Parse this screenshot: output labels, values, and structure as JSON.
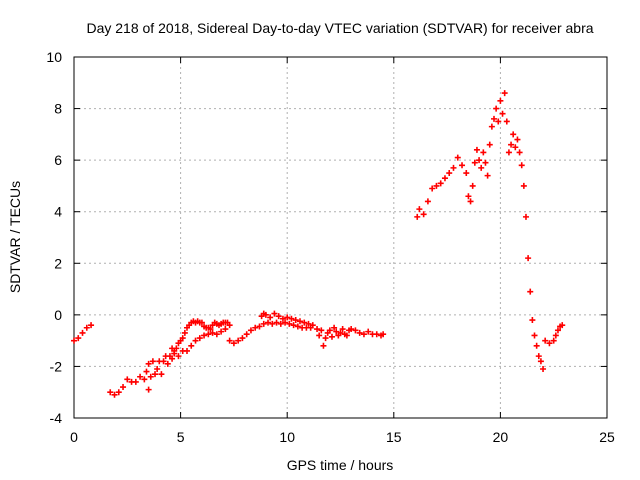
{
  "chart_data": {
    "type": "scatter",
    "title": "Day 218 of 2018, Sidereal Day-to-day VTEC variation (SDTVAR) for receiver abra",
    "xlabel": "GPS time / hours",
    "ylabel": "SDTVAR / TECUs",
    "xlim": [
      0,
      25
    ],
    "ylim": [
      -4,
      10
    ],
    "xticks": [
      0,
      5,
      10,
      15,
      20,
      25
    ],
    "yticks": [
      -4,
      -2,
      0,
      2,
      4,
      6,
      8,
      10
    ],
    "grid": true,
    "marker": "+",
    "series": [
      {
        "name": "SDTVAR",
        "color": "#ff0000",
        "points": [
          [
            0.0,
            -1.0
          ],
          [
            0.2,
            -0.9
          ],
          [
            0.4,
            -0.7
          ],
          [
            0.6,
            -0.5
          ],
          [
            0.8,
            -0.4
          ],
          [
            1.7,
            -3.0
          ],
          [
            1.9,
            -3.1
          ],
          [
            2.1,
            -3.0
          ],
          [
            2.3,
            -2.8
          ],
          [
            2.5,
            -2.5
          ],
          [
            2.7,
            -2.6
          ],
          [
            2.9,
            -2.6
          ],
          [
            3.1,
            -2.4
          ],
          [
            3.3,
            -2.5
          ],
          [
            3.4,
            -2.2
          ],
          [
            3.5,
            -1.9
          ],
          [
            3.5,
            -2.9
          ],
          [
            3.6,
            -2.4
          ],
          [
            3.7,
            -1.8
          ],
          [
            3.8,
            -2.3
          ],
          [
            3.9,
            -2.1
          ],
          [
            4.0,
            -1.8
          ],
          [
            4.1,
            -2.3
          ],
          [
            4.2,
            -1.8
          ],
          [
            4.3,
            -1.6
          ],
          [
            4.4,
            -1.9
          ],
          [
            4.5,
            -1.6
          ],
          [
            4.6,
            -1.7
          ],
          [
            4.7,
            -1.4
          ],
          [
            4.8,
            -1.3
          ],
          [
            4.9,
            -1.1
          ],
          [
            5.0,
            -1.0
          ],
          [
            5.1,
            -0.9
          ],
          [
            5.2,
            -0.7
          ],
          [
            5.3,
            -0.5
          ],
          [
            5.4,
            -0.4
          ],
          [
            5.5,
            -0.3
          ],
          [
            5.6,
            -0.25
          ],
          [
            5.7,
            -0.3
          ],
          [
            5.8,
            -0.25
          ],
          [
            5.9,
            -0.3
          ],
          [
            6.0,
            -0.3
          ],
          [
            6.1,
            -0.45
          ],
          [
            6.2,
            -0.5
          ],
          [
            6.3,
            -0.5
          ],
          [
            6.4,
            -0.55
          ],
          [
            6.5,
            -0.4
          ],
          [
            6.6,
            -0.3
          ],
          [
            6.7,
            -0.35
          ],
          [
            6.8,
            -0.4
          ],
          [
            6.9,
            -0.35
          ],
          [
            7.0,
            -0.3
          ],
          [
            7.1,
            -0.3
          ],
          [
            7.2,
            -0.3
          ],
          [
            7.3,
            -0.4
          ],
          [
            4.6,
            -1.3
          ],
          [
            4.7,
            -1.5
          ],
          [
            4.9,
            -1.6
          ],
          [
            5.1,
            -1.4
          ],
          [
            5.3,
            -1.4
          ],
          [
            5.5,
            -1.2
          ],
          [
            5.7,
            -1.0
          ],
          [
            5.9,
            -0.9
          ],
          [
            6.1,
            -0.8
          ],
          [
            6.3,
            -0.75
          ],
          [
            6.5,
            -0.7
          ],
          [
            6.7,
            -0.75
          ],
          [
            6.9,
            -0.65
          ],
          [
            7.1,
            -0.55
          ],
          [
            7.3,
            -1.0
          ],
          [
            7.5,
            -1.1
          ],
          [
            7.7,
            -1.0
          ],
          [
            7.9,
            -0.9
          ],
          [
            8.1,
            -0.75
          ],
          [
            8.3,
            -0.6
          ],
          [
            8.5,
            -0.5
          ],
          [
            8.7,
            -0.45
          ],
          [
            8.9,
            -0.35
          ],
          [
            9.1,
            -0.3
          ],
          [
            9.3,
            -0.35
          ],
          [
            9.5,
            -0.3
          ],
          [
            9.7,
            -0.35
          ],
          [
            9.9,
            -0.3
          ],
          [
            10.1,
            -0.35
          ],
          [
            10.3,
            -0.4
          ],
          [
            10.5,
            -0.45
          ],
          [
            10.7,
            -0.5
          ],
          [
            10.9,
            -0.5
          ],
          [
            11.1,
            -0.5
          ],
          [
            8.8,
            -0.05
          ],
          [
            8.9,
            0.05
          ],
          [
            9.0,
            0.0
          ],
          [
            9.2,
            -0.1
          ],
          [
            9.4,
            0.05
          ],
          [
            9.6,
            -0.05
          ],
          [
            9.8,
            -0.15
          ],
          [
            10.0,
            -0.1
          ],
          [
            10.2,
            -0.15
          ],
          [
            10.4,
            -0.2
          ],
          [
            10.6,
            -0.25
          ],
          [
            10.8,
            -0.3
          ],
          [
            11.0,
            -0.35
          ],
          [
            11.2,
            -0.4
          ],
          [
            11.4,
            -0.55
          ],
          [
            11.5,
            -0.8
          ],
          [
            11.6,
            -0.6
          ],
          [
            11.7,
            -1.2
          ],
          [
            11.8,
            -0.9
          ],
          [
            11.9,
            -0.7
          ],
          [
            12.0,
            -0.6
          ],
          [
            12.1,
            -0.85
          ],
          [
            12.2,
            -0.5
          ],
          [
            12.3,
            -0.65
          ],
          [
            12.4,
            -0.8
          ],
          [
            12.5,
            -0.7
          ],
          [
            12.6,
            -0.55
          ],
          [
            12.7,
            -0.75
          ],
          [
            12.8,
            -0.8
          ],
          [
            12.9,
            -0.6
          ],
          [
            13.0,
            -0.55
          ],
          [
            13.2,
            -0.6
          ],
          [
            13.4,
            -0.7
          ],
          [
            13.6,
            -0.75
          ],
          [
            13.8,
            -0.65
          ],
          [
            14.0,
            -0.75
          ],
          [
            14.2,
            -0.75
          ],
          [
            14.4,
            -0.8
          ],
          [
            14.5,
            -0.75
          ],
          [
            16.1,
            3.8
          ],
          [
            16.2,
            4.1
          ],
          [
            16.4,
            3.9
          ],
          [
            16.6,
            4.4
          ],
          [
            16.8,
            4.9
          ],
          [
            17.0,
            5.0
          ],
          [
            17.2,
            5.1
          ],
          [
            17.4,
            5.3
          ],
          [
            17.6,
            5.5
          ],
          [
            17.8,
            5.7
          ],
          [
            18.0,
            6.1
          ],
          [
            18.2,
            5.8
          ],
          [
            18.4,
            5.5
          ],
          [
            18.5,
            4.6
          ],
          [
            18.6,
            4.4
          ],
          [
            18.7,
            5.0
          ],
          [
            18.8,
            5.9
          ],
          [
            18.9,
            6.4
          ],
          [
            19.0,
            6.0
          ],
          [
            19.1,
            5.7
          ],
          [
            19.2,
            6.3
          ],
          [
            19.3,
            5.9
          ],
          [
            19.4,
            5.4
          ],
          [
            19.5,
            6.6
          ],
          [
            19.6,
            7.3
          ],
          [
            19.7,
            7.6
          ],
          [
            19.8,
            8.0
          ],
          [
            19.9,
            7.5
          ],
          [
            20.0,
            8.3
          ],
          [
            20.1,
            7.8
          ],
          [
            20.2,
            8.6
          ],
          [
            20.3,
            7.5
          ],
          [
            20.4,
            6.3
          ],
          [
            20.5,
            6.6
          ],
          [
            20.6,
            7.0
          ],
          [
            20.7,
            6.5
          ],
          [
            20.8,
            6.8
          ],
          [
            20.9,
            6.3
          ],
          [
            21.0,
            5.8
          ],
          [
            21.1,
            5.0
          ],
          [
            21.2,
            3.8
          ],
          [
            21.3,
            2.2
          ],
          [
            21.4,
            0.9
          ],
          [
            21.5,
            -0.2
          ],
          [
            21.6,
            -0.8
          ],
          [
            21.7,
            -1.2
          ],
          [
            21.8,
            -1.6
          ],
          [
            21.9,
            -1.8
          ],
          [
            22.0,
            -2.1
          ],
          [
            22.1,
            -1.0
          ],
          [
            22.3,
            -1.1
          ],
          [
            22.5,
            -1.0
          ],
          [
            22.6,
            -0.8
          ],
          [
            22.7,
            -0.6
          ],
          [
            22.8,
            -0.45
          ],
          [
            22.9,
            -0.4
          ]
        ]
      }
    ]
  }
}
